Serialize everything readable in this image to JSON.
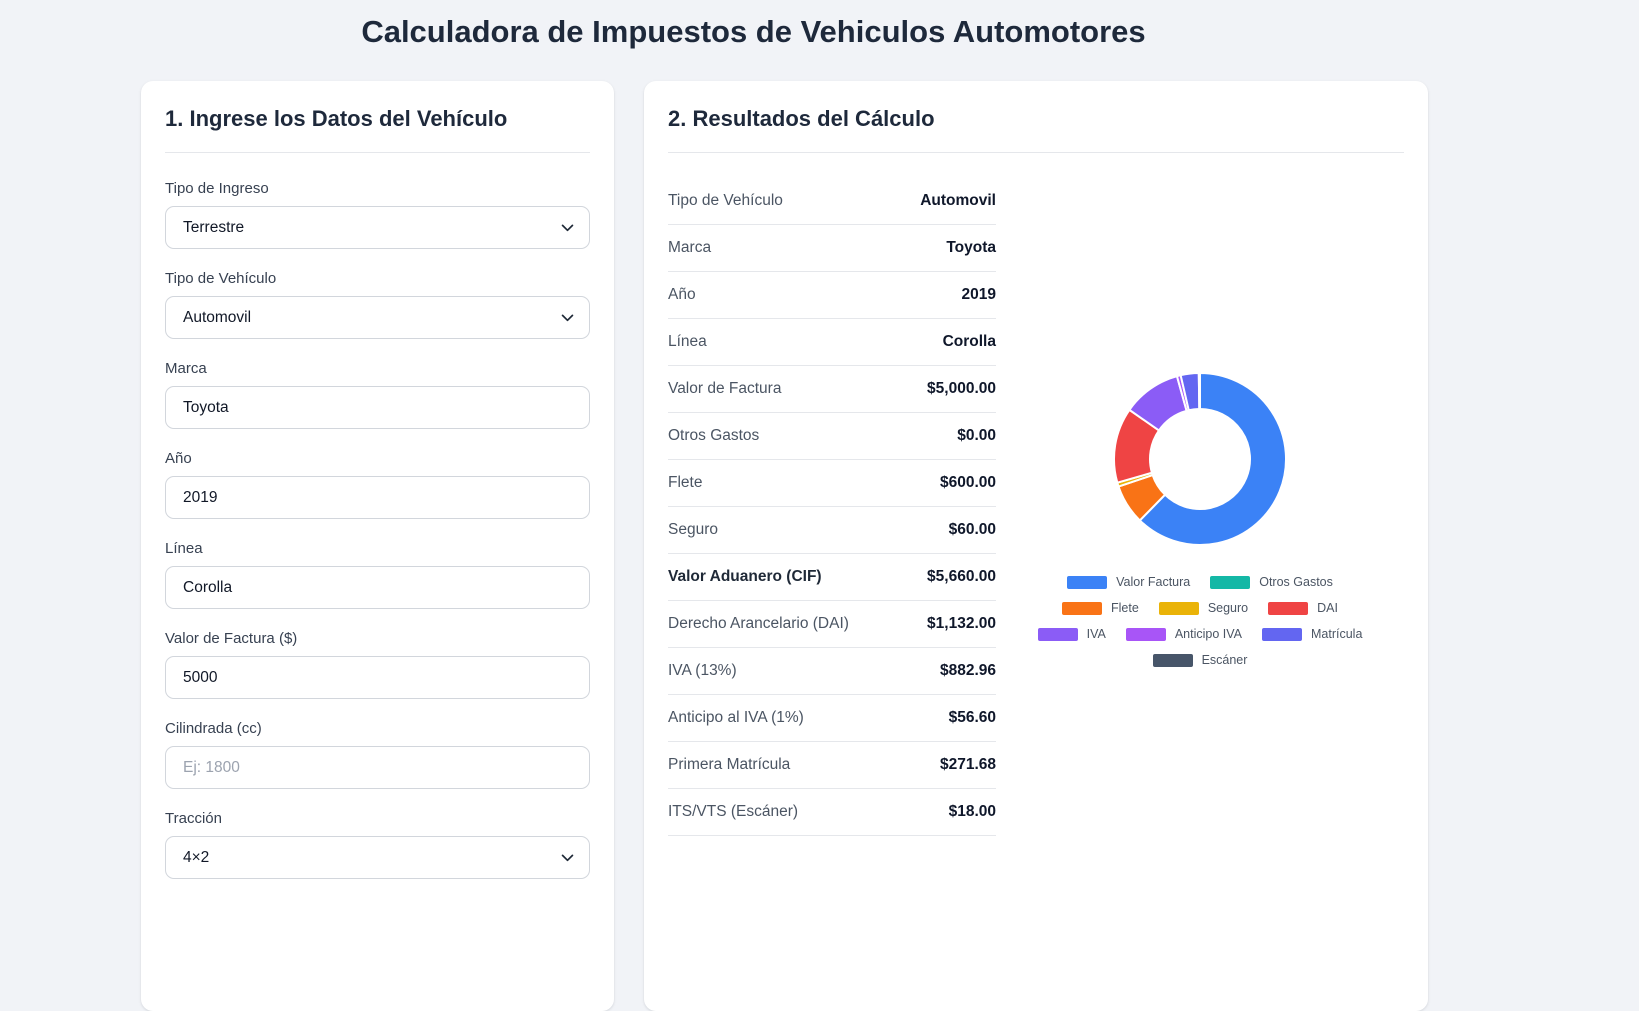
{
  "page": {
    "title": "Calculadora de Impuestos de Vehiculos Automotores"
  },
  "form": {
    "heading": "1. Ingrese los Datos del Vehículo",
    "fields": [
      {
        "label": "Tipo de Ingreso",
        "control": "select",
        "value": "Terrestre",
        "placeholder": ""
      },
      {
        "label": "Tipo de Vehículo",
        "control": "select",
        "value": "Automovil",
        "placeholder": ""
      },
      {
        "label": "Marca",
        "control": "text",
        "value": "Toyota",
        "placeholder": ""
      },
      {
        "label": "Año",
        "control": "text",
        "value": "2019",
        "placeholder": ""
      },
      {
        "label": "Línea",
        "control": "text",
        "value": "Corolla",
        "placeholder": ""
      },
      {
        "label": "Valor de Factura ($)",
        "control": "text",
        "value": "5000",
        "placeholder": ""
      },
      {
        "label": "Cilindrada (cc)",
        "control": "text",
        "value": "",
        "placeholder": "Ej: 1800"
      },
      {
        "label": "Tracción",
        "control": "select",
        "value": "4×2",
        "placeholder": ""
      }
    ]
  },
  "results": {
    "heading": "2. Resultados del Cálculo",
    "rows": [
      {
        "label": "Tipo de Vehículo",
        "value": "Automovil",
        "bold_label": false
      },
      {
        "label": "Marca",
        "value": "Toyota",
        "bold_label": false
      },
      {
        "label": "Año",
        "value": "2019",
        "bold_label": false
      },
      {
        "label": "Línea",
        "value": "Corolla",
        "bold_label": false
      },
      {
        "label": "Valor de Factura",
        "value": "$5,000.00",
        "bold_label": false
      },
      {
        "label": "Otros Gastos",
        "value": "$0.00",
        "bold_label": false
      },
      {
        "label": "Flete",
        "value": "$600.00",
        "bold_label": false
      },
      {
        "label": "Seguro",
        "value": "$60.00",
        "bold_label": false
      },
      {
        "label": "Valor Aduanero (CIF)",
        "value": "$5,660.00",
        "bold_label": true
      },
      {
        "label": "Derecho Arancelario (DAI)",
        "value": "$1,132.00",
        "bold_label": false
      },
      {
        "label": "IVA (13%)",
        "value": "$882.96",
        "bold_label": false
      },
      {
        "label": "Anticipo al IVA (1%)",
        "value": "$56.60",
        "bold_label": false
      },
      {
        "label": "Primera Matrícula",
        "value": "$271.68",
        "bold_label": false
      },
      {
        "label": "ITS/VTS (Escáner)",
        "value": "$18.00",
        "bold_label": false
      }
    ]
  },
  "chart_data": {
    "type": "doughnut",
    "labels": [
      "Valor Factura",
      "Otros Gastos",
      "Flete",
      "Seguro",
      "DAI",
      "IVA",
      "Anticipo IVA",
      "Matrícula",
      "Escáner"
    ],
    "values": [
      5000,
      0,
      600,
      60,
      1132,
      882.96,
      56.6,
      271.68,
      18
    ],
    "colors": [
      "#3b82f6",
      "#14b8a6",
      "#f97316",
      "#eab308",
      "#ef4444",
      "#8b5cf6",
      "#a855f7",
      "#6366f1",
      "#475569"
    ],
    "border_color": "#ffffff",
    "start_angle_deg": 0,
    "legend_position": "bottom",
    "legend_row_breaks": [
      2,
      3,
      3,
      1
    ]
  },
  "colors": {
    "page_bg": "#f1f3f7",
    "card_bg": "#ffffff",
    "divider": "#e5e7eb",
    "heading_text": "#1e293b",
    "value_text": "#0f172a",
    "label_text": "#4b5563"
  }
}
